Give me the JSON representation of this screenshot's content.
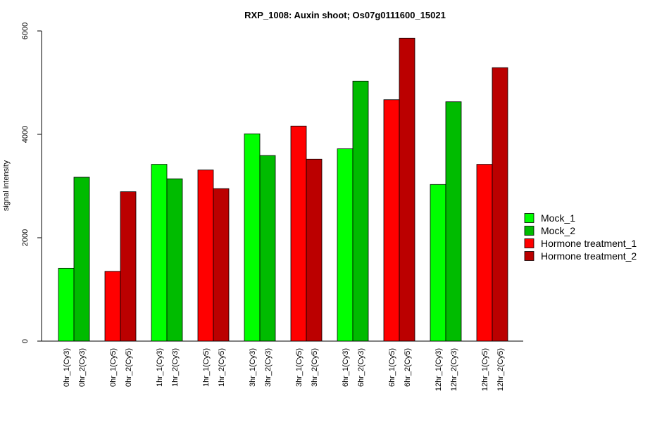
{
  "chart_data": {
    "type": "bar",
    "title": "RXP_1008: Auxin shoot; Os07g0111600_15021",
    "xlabel": "",
    "ylabel": "signal intensity",
    "ylim": [
      0,
      6000
    ],
    "yticks": [
      0,
      2000,
      4000,
      6000
    ],
    "grid": false,
    "legend_position": "right",
    "series": [
      {
        "name": "Mock_1",
        "color": "#00ff00"
      },
      {
        "name": "Mock_2",
        "color": "#00bb00"
      },
      {
        "name": "Hormone treatment_1",
        "color": "#ff0000"
      },
      {
        "name": "Hormone treatment_2",
        "color": "#bb0000"
      }
    ],
    "groups": [
      {
        "bars": [
          {
            "label": "0hr_1(Cy3)",
            "value": 1410,
            "series": 0
          },
          {
            "label": "0hr_2(Cy3)",
            "value": 3170,
            "series": 1
          }
        ]
      },
      {
        "bars": [
          {
            "label": "0hr_1(Cy5)",
            "value": 1350,
            "series": 2
          },
          {
            "label": "0hr_2(Cy5)",
            "value": 2890,
            "series": 3
          }
        ]
      },
      {
        "bars": [
          {
            "label": "1hr_1(Cy3)",
            "value": 3420,
            "series": 0
          },
          {
            "label": "1hr_2(Cy3)",
            "value": 3140,
            "series": 1
          }
        ]
      },
      {
        "bars": [
          {
            "label": "1hr_1(Cy5)",
            "value": 3310,
            "series": 2
          },
          {
            "label": "1hr_2(Cy5)",
            "value": 2950,
            "series": 3
          }
        ]
      },
      {
        "bars": [
          {
            "label": "3hr_1(Cy3)",
            "value": 4010,
            "series": 0
          },
          {
            "label": "3hr_2(Cy3)",
            "value": 3590,
            "series": 1
          }
        ]
      },
      {
        "bars": [
          {
            "label": "3hr_1(Cy5)",
            "value": 4160,
            "series": 2
          },
          {
            "label": "3hr_2(Cy5)",
            "value": 3520,
            "series": 3
          }
        ]
      },
      {
        "bars": [
          {
            "label": "6hr_1(Cy3)",
            "value": 3720,
            "series": 0
          },
          {
            "label": "6hr_2(Cy3)",
            "value": 5030,
            "series": 1
          }
        ]
      },
      {
        "bars": [
          {
            "label": "6hr_1(Cy5)",
            "value": 4670,
            "series": 2
          },
          {
            "label": "6hr_2(Cy5)",
            "value": 5860,
            "series": 3
          }
        ]
      },
      {
        "bars": [
          {
            "label": "12hr_1(Cy3)",
            "value": 3030,
            "series": 0
          },
          {
            "label": "12hr_2(Cy3)",
            "value": 4630,
            "series": 1
          }
        ]
      },
      {
        "bars": [
          {
            "label": "12hr_1(Cy5)",
            "value": 3420,
            "series": 2
          },
          {
            "label": "12hr_2(Cy5)",
            "value": 5290,
            "series": 3
          }
        ]
      }
    ]
  }
}
